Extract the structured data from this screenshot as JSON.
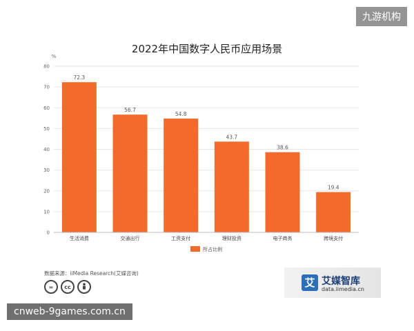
{
  "watermarks": {
    "top_right": "九游机构",
    "bottom_left": "cnweb-9games.com.cn"
  },
  "source": "数据来源：iiMedia Research(艾媒咨询)",
  "brand": {
    "name": "艾媒智库",
    "url": "data.iimedia.cn",
    "logo_char": "艾",
    "logo_color": "#2c6fb7"
  },
  "license_icons": [
    "equals-icon",
    "cc-icon",
    "person-icon"
  ],
  "colors": {
    "bar": "#f26b2c",
    "grid": "#e6e6e6",
    "axis": "#bbbbbb"
  },
  "chart_data": {
    "type": "bar",
    "title": "2022年中国数字人民币应用场景",
    "ylabel": "%",
    "xlabel": "",
    "categories": [
      "生活消费",
      "交通出行",
      "工资支付",
      "理财投资",
      "电子商务",
      "跨境支付"
    ],
    "series": [
      {
        "name": "所占比例",
        "values": [
          72.3,
          56.7,
          54.8,
          43.7,
          38.6,
          19.4
        ]
      }
    ],
    "ylim": [
      0,
      80
    ],
    "yticks": [
      0,
      10,
      20,
      30,
      40,
      50,
      60,
      70,
      80
    ],
    "grid": true,
    "legend": "bottom-center",
    "data_labels": [
      "72.3",
      "56.7",
      "54.8",
      "43.7",
      "38.6",
      "19.4"
    ]
  }
}
